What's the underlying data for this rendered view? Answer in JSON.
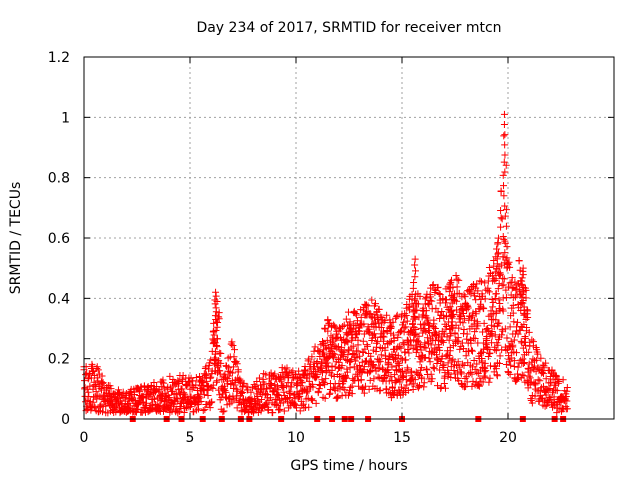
{
  "chart_data": {
    "type": "scatter",
    "title": "Day 234 of 2017, SRMTID for receiver mtcn",
    "xlabel": "GPS time / hours",
    "ylabel": "SRMTID / TECUs",
    "xlim": [
      0,
      25
    ],
    "ylim": [
      0,
      1.2
    ],
    "xticks": [
      0,
      5,
      10,
      15,
      20
    ],
    "yticks": [
      0,
      0.2,
      0.4,
      0.6,
      0.8,
      1,
      1.2
    ],
    "xtick_labels": [
      "0",
      "5",
      "10",
      "15",
      "20"
    ],
    "ytick_labels": [
      "0",
      "0.2",
      "0.4",
      "0.6",
      "0.8",
      "1",
      "1.2"
    ],
    "grid": true,
    "marker": "+",
    "color": "#ff0000",
    "series_level": [
      [
        0.0,
        0.1
      ],
      [
        0.5,
        0.11
      ],
      [
        1.0,
        0.07
      ],
      [
        1.5,
        0.05
      ],
      [
        2.0,
        0.05
      ],
      [
        2.5,
        0.06
      ],
      [
        3.0,
        0.06
      ],
      [
        3.5,
        0.07
      ],
      [
        4.0,
        0.08
      ],
      [
        4.5,
        0.08
      ],
      [
        5.0,
        0.09
      ],
      [
        5.5,
        0.08
      ],
      [
        6.0,
        0.12
      ],
      [
        6.3,
        0.3
      ],
      [
        6.5,
        0.08
      ],
      [
        7.0,
        0.16
      ],
      [
        7.3,
        0.09
      ],
      [
        7.6,
        0.06
      ],
      [
        8.0,
        0.06
      ],
      [
        8.5,
        0.09
      ],
      [
        9.0,
        0.09
      ],
      [
        9.5,
        0.1
      ],
      [
        10.0,
        0.09
      ],
      [
        10.5,
        0.11
      ],
      [
        11.0,
        0.16
      ],
      [
        11.5,
        0.2
      ],
      [
        12.0,
        0.18
      ],
      [
        12.5,
        0.22
      ],
      [
        13.0,
        0.22
      ],
      [
        13.5,
        0.25
      ],
      [
        14.0,
        0.22
      ],
      [
        14.5,
        0.2
      ],
      [
        15.0,
        0.22
      ],
      [
        15.5,
        0.26
      ],
      [
        16.0,
        0.25
      ],
      [
        16.5,
        0.28
      ],
      [
        17.0,
        0.26
      ],
      [
        17.5,
        0.3
      ],
      [
        18.0,
        0.26
      ],
      [
        18.5,
        0.28
      ],
      [
        19.0,
        0.3
      ],
      [
        19.5,
        0.35
      ],
      [
        19.8,
        0.6
      ],
      [
        20.0,
        0.35
      ],
      [
        20.3,
        0.3
      ],
      [
        20.7,
        0.35
      ],
      [
        21.0,
        0.18
      ],
      [
        21.5,
        0.12
      ],
      [
        22.0,
        0.1
      ],
      [
        22.5,
        0.08
      ],
      [
        22.8,
        0.06
      ]
    ],
    "peaks": [
      {
        "x": 6.2,
        "y": 0.42
      },
      {
        "x": 15.6,
        "y": 0.53
      },
      {
        "x": 17.3,
        "y": 0.46
      },
      {
        "x": 19.5,
        "y": 0.58
      },
      {
        "x": 19.85,
        "y": 1.01
      },
      {
        "x": 20.7,
        "y": 0.5
      }
    ],
    "zero_markers": [
      2.3,
      3.9,
      4.6,
      5.6,
      6.5,
      7.4,
      7.8,
      9.3,
      11.0,
      11.7,
      12.3,
      12.6,
      13.4,
      15.0,
      18.6,
      20.7,
      22.2,
      22.6
    ]
  }
}
